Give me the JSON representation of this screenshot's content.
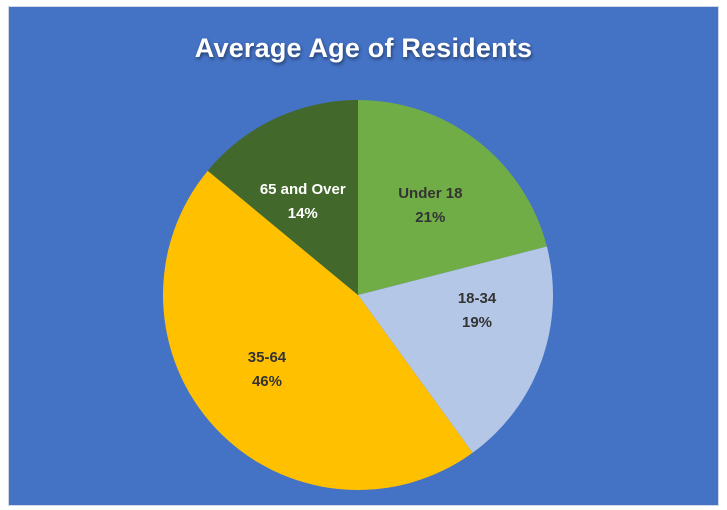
{
  "chart_data": {
    "type": "pie",
    "title": "Average Age of Residents",
    "slices": [
      {
        "label": "Under 18",
        "value": 21,
        "value_text": "21%",
        "color": "#70ad47",
        "label_color": "#333333"
      },
      {
        "label": "18-34",
        "value": 19,
        "value_text": "19%",
        "color": "#b4c7e7",
        "label_color": "#333333"
      },
      {
        "label": "35-64",
        "value": 46,
        "value_text": "46%",
        "color": "#ffc000",
        "label_color": "#333333"
      },
      {
        "label": "65 and Over",
        "value": 14,
        "value_text": "14%",
        "color": "#43682b",
        "label_color": "#ffffff"
      }
    ],
    "start_angle_deg": 0,
    "direction": "clockwise",
    "legend": "none",
    "data_labels": "inside"
  },
  "colors": {
    "background": "#4472c4",
    "title": "#ffffff"
  }
}
